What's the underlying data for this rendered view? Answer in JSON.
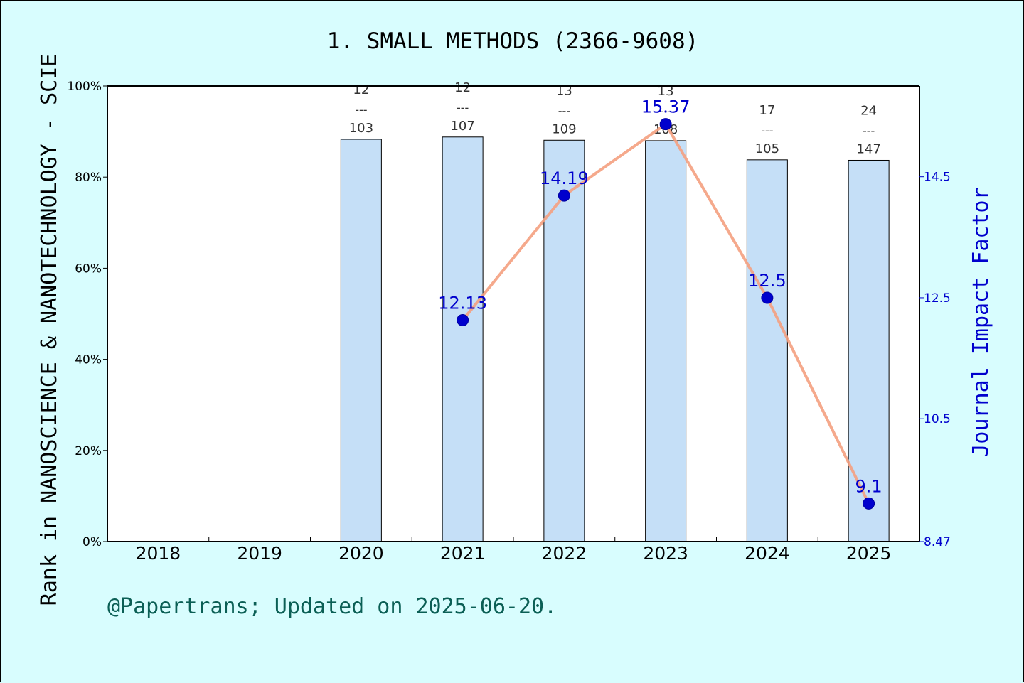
{
  "chart_data": {
    "type": "bar",
    "title": "1. SMALL METHODS (2366-9608)",
    "ylabel_left": "Rank in NANOSCIENCE & NANOTECHNOLOGY - SCIE",
    "ylabel_right": "Journal Impact Factor",
    "categories": [
      "2018",
      "2019",
      "2020",
      "2021",
      "2022",
      "2023",
      "2024",
      "2025"
    ],
    "left_axis": {
      "range": [
        0,
        100
      ],
      "ticks": [
        "0%",
        "20%",
        "40%",
        "60%",
        "80%",
        "100%"
      ]
    },
    "right_axis": {
      "range": [
        8.47,
        16.0
      ],
      "ticks": [
        {
          "value": 8.47,
          "label": "8.47"
        },
        {
          "value": 10.5,
          "label": "10.5"
        },
        {
          "value": 12.5,
          "label": "12.5"
        },
        {
          "value": 14.5,
          "label": "14.5"
        }
      ]
    },
    "series": [
      {
        "kind": "bar",
        "values": [
          null,
          null,
          88.3,
          88.8,
          88.1,
          88.0,
          83.8,
          83.7
        ],
        "rank_labels": [
          null,
          null,
          {
            "rank": "12",
            "sep": "---",
            "total": "103"
          },
          {
            "rank": "12",
            "sep": "---",
            "total": "107"
          },
          {
            "rank": "13",
            "sep": "---",
            "total": "109"
          },
          {
            "rank": "13",
            "sep": "---",
            "total": "108"
          },
          {
            "rank": "17",
            "sep": "---",
            "total": "105"
          },
          {
            "rank": "24",
            "sep": "---",
            "total": "147"
          }
        ],
        "color": "#c5dff7"
      },
      {
        "kind": "line",
        "axis": "right",
        "values": [
          null,
          null,
          null,
          12.13,
          14.19,
          15.37,
          12.5,
          9.1
        ],
        "labels": [
          null,
          null,
          null,
          "12.13",
          "14.19",
          "15.37",
          "12.5",
          "9.1"
        ],
        "color": "#f4a080",
        "marker_color": "#0000cd"
      }
    ],
    "grid": false
  },
  "footer": "@Papertrans; Updated on 2025-06-20."
}
